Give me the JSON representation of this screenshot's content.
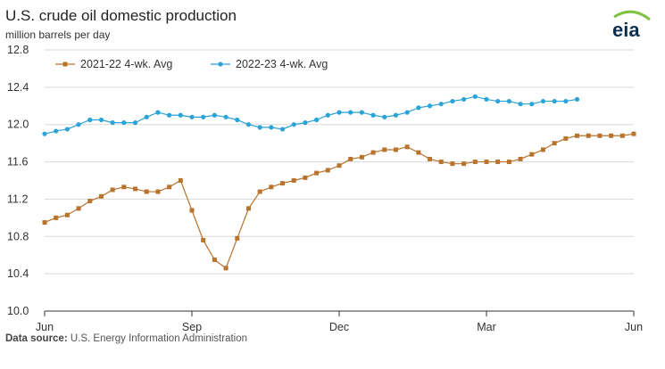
{
  "title": "U.S. crude oil domestic production",
  "subtitle": "million barrels per day",
  "source_label": "Data source:",
  "source_text": "U.S. Energy Information Administration",
  "logo_text": "eia",
  "colors": {
    "series_2021_22": "#b8732d",
    "series_2022_23": "#2aa3d6",
    "grid": "#d9d9d9",
    "logo_text": "#0d2f4f",
    "logo_arc": "#7fc241"
  },
  "chart_data": {
    "type": "line",
    "xlabel": "",
    "ylabel": "",
    "xlim": [
      0,
      52
    ],
    "ylim": [
      10.0,
      12.8
    ],
    "x_ticks": [
      {
        "label": "Jun",
        "x": 0
      },
      {
        "label": "Sep",
        "x": 13
      },
      {
        "label": "Dec",
        "x": 26
      },
      {
        "label": "Mar",
        "x": 39
      },
      {
        "label": "Jun",
        "x": 52
      }
    ],
    "y_ticks": [
      {
        "label": "10.0",
        "y": 10.0
      },
      {
        "label": "10.4",
        "y": 10.4
      },
      {
        "label": "10.8",
        "y": 10.8
      },
      {
        "label": "11.2",
        "y": 11.2
      },
      {
        "label": "11.6",
        "y": 11.6
      },
      {
        "label": "12.0",
        "y": 12.0
      },
      {
        "label": "12.4",
        "y": 12.4
      },
      {
        "label": "12.8",
        "y": 12.8
      }
    ],
    "grid": true,
    "legend_position": "top-left",
    "series": [
      {
        "name": "2021-22 4-wk. Avg",
        "marker": "square",
        "values": [
          10.95,
          11.0,
          11.03,
          11.1,
          11.18,
          11.23,
          11.3,
          11.33,
          11.31,
          11.28,
          11.28,
          11.33,
          11.4,
          11.08,
          10.76,
          10.55,
          10.46,
          10.78,
          11.1,
          11.28,
          11.33,
          11.37,
          11.4,
          11.43,
          11.48,
          11.51,
          11.56,
          11.63,
          11.65,
          11.7,
          11.73,
          11.73,
          11.76,
          11.7,
          11.63,
          11.6,
          11.58,
          11.58,
          11.6,
          11.6,
          11.6,
          11.6,
          11.63,
          11.68,
          11.73,
          11.8,
          11.85,
          11.88,
          11.88,
          11.88,
          11.88,
          11.88,
          11.9
        ]
      },
      {
        "name": "2022-23 4-wk. Avg",
        "marker": "circle",
        "values": [
          11.9,
          11.93,
          11.95,
          12.0,
          12.05,
          12.05,
          12.02,
          12.02,
          12.02,
          12.08,
          12.13,
          12.1,
          12.1,
          12.08,
          12.08,
          12.1,
          12.08,
          12.05,
          12.0,
          11.97,
          11.97,
          11.95,
          12.0,
          12.02,
          12.05,
          12.1,
          12.13,
          12.13,
          12.13,
          12.1,
          12.08,
          12.1,
          12.13,
          12.18,
          12.2,
          12.22,
          12.25,
          12.27,
          12.3,
          12.27,
          12.25,
          12.25,
          12.22,
          12.22,
          12.25,
          12.25,
          12.25,
          12.27
        ]
      }
    ]
  }
}
